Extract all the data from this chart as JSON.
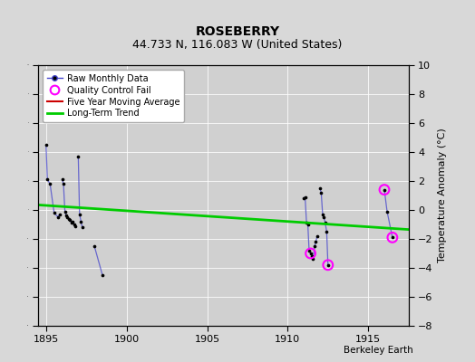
{
  "title": "ROSEBERRY",
  "subtitle": "44.733 N, 116.083 W (United States)",
  "ylabel": "Temperature Anomaly (°C)",
  "credit": "Berkeley Earth",
  "xlim": [
    1894.5,
    1917.5
  ],
  "ylim": [
    -8,
    10
  ],
  "yticks": [
    -8,
    -6,
    -4,
    -2,
    0,
    2,
    4,
    6,
    8,
    10
  ],
  "xticks": [
    1895,
    1900,
    1905,
    1910,
    1915
  ],
  "bg_color": "#d8d8d8",
  "plot_bg_color": "#d0d0d0",
  "raw_segments": [
    {
      "x": [
        1895.0,
        1895.08,
        1895.25,
        1895.5,
        1895.75,
        1895.83
      ],
      "y": [
        4.5,
        2.1,
        1.8,
        -0.2,
        -0.5,
        -0.3
      ]
    },
    {
      "x": [
        1896.0,
        1896.08,
        1896.17,
        1896.25,
        1896.33,
        1896.42,
        1896.5,
        1896.58,
        1896.67,
        1896.75,
        1896.83
      ],
      "y": [
        2.1,
        1.8,
        -0.1,
        -0.4,
        -0.5,
        -0.6,
        -0.7,
        -0.9,
        -0.8,
        -1.0,
        -1.1
      ]
    },
    {
      "x": [
        1897.0,
        1897.08,
        1897.17,
        1897.25
      ],
      "y": [
        3.7,
        -0.3,
        -0.8,
        -1.2
      ]
    },
    {
      "x": [
        1898.0,
        1898.5
      ],
      "y": [
        -2.5,
        -4.5
      ]
    },
    {
      "x": [
        1911.0,
        1911.08,
        1911.17,
        1911.25,
        1911.33,
        1911.42,
        1911.5,
        1911.58,
        1911.67,
        1911.75,
        1911.83
      ],
      "y": [
        0.8,
        0.9,
        -0.9,
        -1.0,
        -2.8,
        -3.0,
        -3.2,
        -3.4,
        -2.5,
        -2.2,
        -1.8
      ]
    },
    {
      "x": [
        1912.0,
        1912.08,
        1912.17,
        1912.25,
        1912.33,
        1912.42,
        1912.5
      ],
      "y": [
        1.5,
        1.2,
        -0.3,
        -0.5,
        -0.9,
        -1.5,
        -3.8
      ]
    },
    {
      "x": [
        1916.0,
        1916.17,
        1916.5
      ],
      "y": [
        1.4,
        -0.1,
        -1.9
      ]
    }
  ],
  "qc_fail": {
    "x": [
      1911.42,
      1912.5,
      1916.0,
      1916.5
    ],
    "y": [
      -3.0,
      -3.8,
      1.4,
      -1.9
    ]
  },
  "trend": {
    "x": [
      1894.5,
      1917.5
    ],
    "y": [
      0.35,
      -1.35
    ]
  },
  "raw_color": "#4444cc",
  "raw_dot_color": "#000000",
  "qc_color": "#ff00ff",
  "moving_avg_color": "#cc0000",
  "trend_color": "#00cc00",
  "grid_color": "#ffffff",
  "title_fontsize": 10,
  "subtitle_fontsize": 9,
  "tick_fontsize": 8,
  "ylabel_fontsize": 8
}
